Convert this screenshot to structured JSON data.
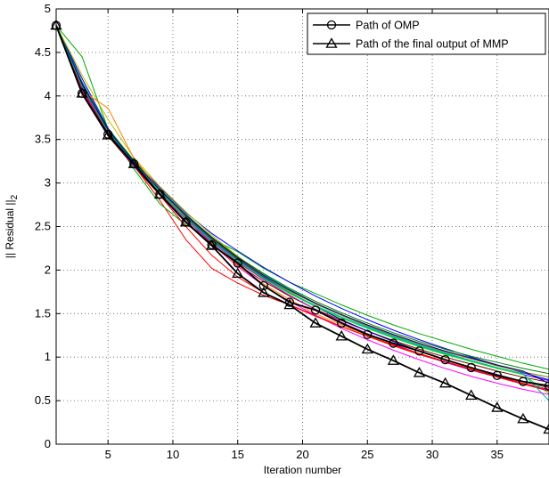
{
  "chart_data": {
    "type": "line",
    "title": "",
    "xlabel": "Iteration number",
    "ylabel": "|| Residual ||",
    "ylabel_subscript": "2",
    "xlim": [
      1,
      39
    ],
    "ylim": [
      0,
      5
    ],
    "xticks": [
      5,
      10,
      15,
      20,
      25,
      30,
      35
    ],
    "yticks": [
      0,
      0.5,
      1,
      1.5,
      2,
      2.5,
      3,
      3.5,
      4,
      4.5,
      5
    ],
    "grid": true,
    "legend_position": "top-right",
    "series": [
      {
        "name": "Path of OMP",
        "color": "#000000",
        "marker": "circle",
        "x": [
          1,
          3,
          5,
          7,
          9,
          11,
          13,
          15,
          17,
          19,
          21,
          23,
          25,
          27,
          29,
          31,
          33,
          35,
          37,
          39
        ],
        "y": [
          4.81,
          4.03,
          3.56,
          3.22,
          2.87,
          2.55,
          2.29,
          2.08,
          1.82,
          1.63,
          1.54,
          1.39,
          1.26,
          1.16,
          1.07,
          0.97,
          0.88,
          0.79,
          0.72,
          0.67
        ]
      },
      {
        "name": "Path of the final output of MMP",
        "color": "#000000",
        "marker": "triangle",
        "x": [
          1,
          3,
          5,
          7,
          9,
          11,
          13,
          15,
          17,
          19,
          21,
          23,
          25,
          27,
          29,
          31,
          33,
          35,
          37,
          39
        ],
        "y": [
          4.81,
          4.03,
          3.55,
          3.22,
          2.87,
          2.55,
          2.28,
          1.96,
          1.74,
          1.6,
          1.39,
          1.24,
          1.09,
          0.96,
          0.82,
          0.7,
          0.56,
          0.42,
          0.29,
          0.17
        ]
      }
    ],
    "background_paths": [
      {
        "color": "#ff0000",
        "y": [
          4.81,
          4.05,
          3.57,
          3.2,
          2.8,
          2.35,
          2.02,
          1.85,
          1.71,
          1.6,
          1.48,
          1.35,
          1.24,
          1.13,
          1.03,
          0.94,
          0.86,
          0.78,
          0.7,
          0.63
        ]
      },
      {
        "color": "#00aa00",
        "y": [
          4.81,
          4.45,
          3.62,
          3.16,
          2.76,
          2.52,
          2.36,
          2.21,
          2.02,
          1.86,
          1.73,
          1.6,
          1.48,
          1.37,
          1.27,
          1.18,
          1.09,
          1.01,
          0.93,
          0.86
        ]
      },
      {
        "color": "#0000ff",
        "y": [
          4.81,
          4.2,
          3.63,
          3.25,
          2.95,
          2.66,
          2.42,
          2.22,
          2.03,
          1.86,
          1.7,
          1.56,
          1.43,
          1.31,
          1.2,
          1.1,
          1.0,
          0.91,
          0.82,
          0.74
        ]
      },
      {
        "color": "#ff00ff",
        "y": [
          4.81,
          4.12,
          3.59,
          3.24,
          2.9,
          2.59,
          2.3,
          2.04,
          1.82,
          1.64,
          1.48,
          1.33,
          1.2,
          1.08,
          0.97,
          0.87,
          0.78,
          0.7,
          0.63,
          0.57
        ]
      },
      {
        "color": "#00bfbf",
        "y": [
          4.81,
          4.08,
          3.57,
          3.23,
          2.91,
          2.62,
          2.37,
          2.15,
          1.95,
          1.78,
          1.62,
          1.48,
          1.35,
          1.24,
          1.14,
          1.05,
          0.96,
          0.88,
          0.8,
          0.73
        ]
      },
      {
        "color": "#bfbf00",
        "y": [
          4.81,
          4.24,
          3.73,
          3.29,
          2.96,
          2.67,
          2.4,
          2.16,
          1.94,
          1.75,
          1.58,
          1.43,
          1.3,
          1.18,
          1.07,
          0.97,
          0.88,
          0.8,
          0.72,
          0.65
        ]
      },
      {
        "color": "#7f0000",
        "y": [
          4.81,
          4.02,
          3.54,
          3.19,
          2.86,
          2.56,
          2.29,
          2.06,
          1.87,
          1.7,
          1.55,
          1.42,
          1.3,
          1.19,
          1.09,
          1.0,
          0.92,
          0.84,
          0.77,
          0.71
        ]
      },
      {
        "color": "#7f00ff",
        "y": [
          4.81,
          4.09,
          3.56,
          3.2,
          2.89,
          2.6,
          2.34,
          2.1,
          1.9,
          1.73,
          1.58,
          1.45,
          1.33,
          1.22,
          1.12,
          1.03,
          0.95,
          0.87,
          0.8,
          0.73
        ]
      },
      {
        "color": "#007f00",
        "y": [
          4.81,
          4.16,
          3.62,
          3.26,
          2.93,
          2.64,
          2.38,
          2.15,
          1.96,
          1.79,
          1.64,
          1.51,
          1.39,
          1.28,
          1.18,
          1.09,
          1.01,
          0.94,
          0.87,
          0.81
        ]
      },
      {
        "color": "#0000bf",
        "y": [
          4.81,
          4.13,
          3.57,
          3.22,
          2.9,
          2.61,
          2.35,
          2.12,
          1.92,
          1.74,
          1.58,
          1.43,
          1.3,
          1.18,
          1.07,
          0.97,
          0.88,
          0.8,
          0.72,
          0.65
        ]
      },
      {
        "color": "#ff7f00",
        "y": [
          4.81,
          4.06,
          3.86,
          3.28,
          2.92,
          2.6,
          2.31,
          2.05,
          1.84,
          1.66,
          1.5,
          1.37,
          1.25,
          1.14,
          1.04,
          0.95,
          0.87,
          0.79,
          0.72,
          0.66
        ]
      },
      {
        "color": "#00ff00",
        "y": [
          4.81,
          4.1,
          3.58,
          3.22,
          2.89,
          2.59,
          2.33,
          2.1,
          1.9,
          1.73,
          1.58,
          1.45,
          1.33,
          1.22,
          1.12,
          1.03,
          0.95,
          0.87,
          0.8,
          0.58
        ]
      },
      {
        "color": "#bf00bf",
        "y": [
          4.81,
          4.07,
          3.57,
          3.21,
          2.88,
          2.58,
          2.32,
          2.09,
          1.89,
          1.71,
          1.55,
          1.4,
          1.27,
          1.15,
          1.04,
          0.94,
          0.85,
          0.77,
          0.69,
          0.62
        ]
      },
      {
        "color": "#7f7f00",
        "y": [
          4.81,
          4.11,
          3.6,
          3.23,
          2.91,
          2.62,
          2.36,
          2.13,
          1.93,
          1.76,
          1.61,
          1.48,
          1.36,
          1.25,
          1.15,
          1.06,
          0.98,
          0.9,
          0.83,
          0.77
        ]
      },
      {
        "color": "#00007f",
        "y": [
          4.81,
          4.14,
          3.61,
          3.24,
          2.92,
          2.63,
          2.37,
          2.14,
          1.94,
          1.77,
          1.62,
          1.49,
          1.37,
          1.26,
          1.16,
          1.07,
          0.99,
          0.91,
          0.84,
          0.7
        ]
      },
      {
        "color": "#ff0000",
        "y": [
          4.81,
          4.09,
          3.58,
          3.22,
          2.86,
          2.5,
          2.17,
          1.92,
          1.74,
          1.6,
          1.47,
          1.35,
          1.24,
          1.14,
          1.04,
          0.95,
          0.86,
          0.77,
          0.69,
          0.61
        ]
      },
      {
        "color": "#00aaaa",
        "y": [
          4.81,
          4.11,
          3.59,
          3.23,
          2.9,
          2.6,
          2.34,
          2.11,
          1.91,
          1.74,
          1.59,
          1.46,
          1.34,
          1.23,
          1.13,
          1.04,
          0.96,
          0.88,
          0.81,
          0.5
        ]
      }
    ]
  }
}
